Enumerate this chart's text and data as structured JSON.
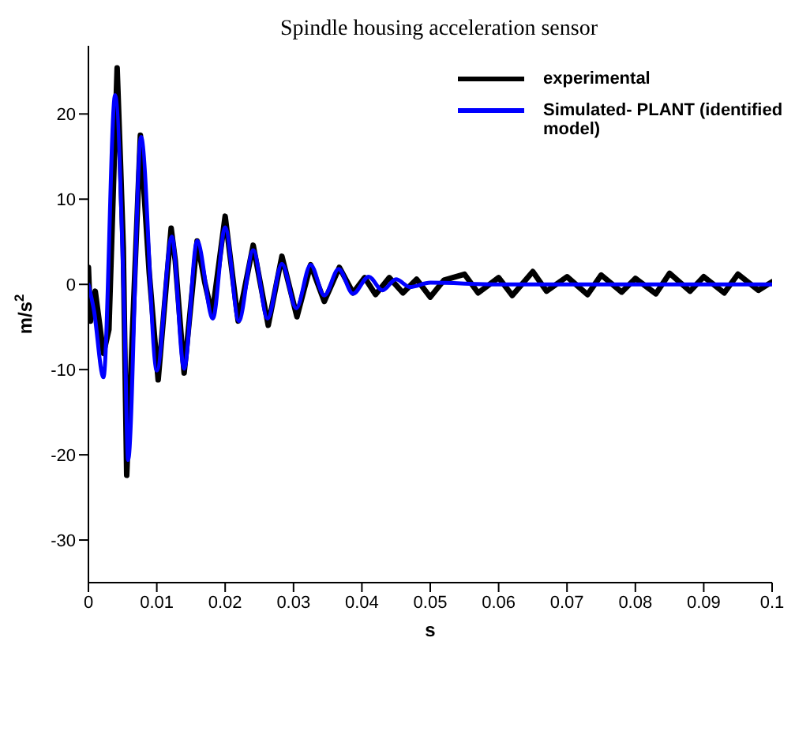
{
  "chart_data": {
    "type": "line",
    "title": "Spindle housing acceleration sensor",
    "xlabel": "s",
    "ylabel": "m/s$^{2}$",
    "xlim": [
      0,
      0.1
    ],
    "xticks": [
      0,
      0.01,
      0.02,
      0.03,
      0.04,
      0.05,
      0.06,
      0.07,
      0.08,
      0.09,
      0.1
    ],
    "ylim": [
      -35,
      28
    ],
    "yticks": [
      -30,
      -20,
      -10,
      0,
      10,
      20
    ],
    "grid": false,
    "legend": "top right",
    "marker": "none",
    "line_style": "solid",
    "series": [
      {
        "name": "experimental",
        "color": "#000000",
        "x": [
          0,
          0.0003,
          0.001,
          0.0022,
          0.003,
          0.0042,
          0.0047,
          0.0051,
          0.0056,
          0.0076,
          0.0089,
          0.0102,
          0.0121,
          0.0127,
          0.014,
          0.0159,
          0.017,
          0.0181,
          0.02,
          0.0219,
          0.0241,
          0.0263,
          0.0283,
          0.0305,
          0.0325,
          0.0345,
          0.0367,
          0.0387,
          0.0404,
          0.042,
          0.044,
          0.046,
          0.048,
          0.05,
          0.052,
          0.055,
          0.057,
          0.06,
          0.062,
          0.065,
          0.067,
          0.07,
          0.073,
          0.075,
          0.078,
          0.08,
          0.083,
          0.085,
          0.088,
          0.09,
          0.093,
          0.095,
          0.098,
          0.1
        ],
        "values": [
          2,
          -4.3,
          -0.8,
          -8.1,
          -5.3,
          25.4,
          14,
          4.3,
          -22.4,
          17.5,
          1.3,
          -11.2,
          6.6,
          2.8,
          -10.4,
          5.1,
          0.3,
          -3.6,
          8,
          -4.3,
          4.6,
          -4.8,
          3.3,
          -3.8,
          2.3,
          -2,
          2,
          -1,
          0.8,
          -1.2,
          0.8,
          -1,
          0.6,
          -1.5,
          0.5,
          1.2,
          -1,
          0.8,
          -1.3,
          1.5,
          -0.8,
          0.9,
          -1.2,
          1.1,
          -0.9,
          0.7,
          -1.1,
          1.3,
          -0.8,
          0.9,
          -1,
          1.2,
          -0.7,
          0.3
        ]
      },
      {
        "name": "Simulated- PLANT (identified model)",
        "color": "#0000ff",
        "x": [
          0,
          0.0008,
          0.0022,
          0.0039,
          0.0053,
          0.0058,
          0.0077,
          0.01,
          0.0122,
          0.014,
          0.0159,
          0.0182,
          0.02,
          0.022,
          0.0241,
          0.0262,
          0.0283,
          0.0304,
          0.0325,
          0.0345,
          0.0366,
          0.0387,
          0.041,
          0.043,
          0.045,
          0.047,
          0.05,
          0.06,
          0.1
        ],
        "values": [
          0,
          -3,
          -10.9,
          22.2,
          -5,
          -20.6,
          17.3,
          -10.1,
          5.6,
          -9.9,
          5.1,
          -4,
          6.7,
          -4.3,
          4,
          -4,
          2.4,
          -2.8,
          2.3,
          -1.3,
          1.8,
          -1.1,
          0.9,
          -0.7,
          0.6,
          -0.3,
          0.2,
          0,
          0
        ]
      }
    ]
  }
}
